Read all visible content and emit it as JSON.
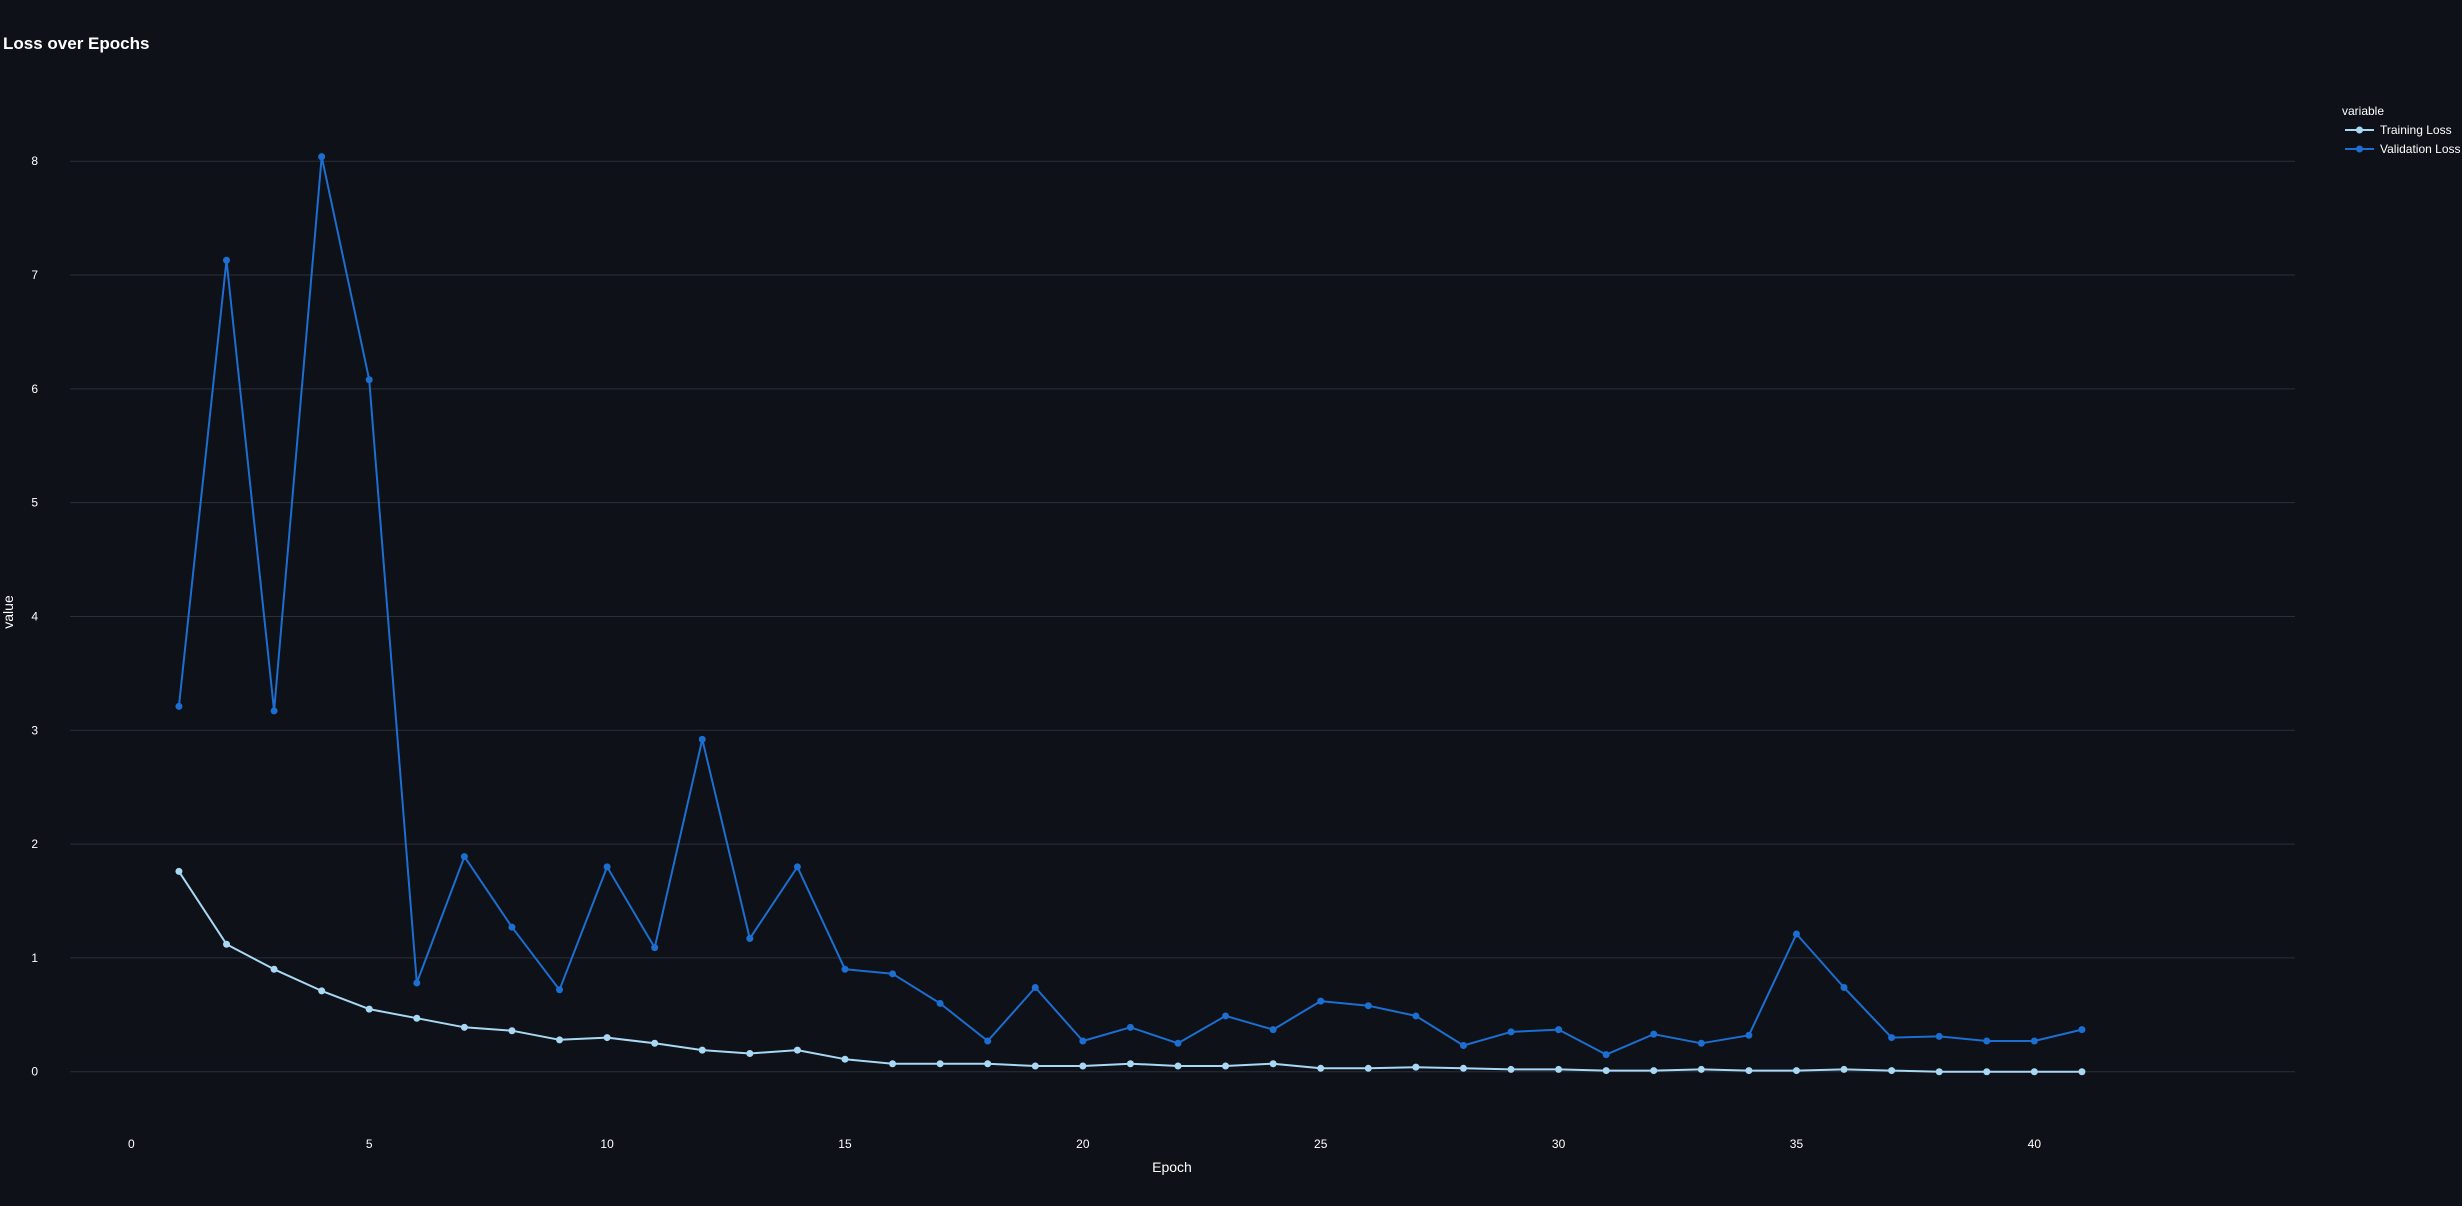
{
  "chart_data": {
    "type": "line",
    "title": "Loss over Epochs",
    "xlabel": "Epoch",
    "ylabel": "value",
    "xlim": [
      -1.5,
      45.5
    ],
    "ylim": [
      -0.6,
      8.45
    ],
    "xticks": [
      0,
      5,
      10,
      15,
      20,
      25,
      30,
      35,
      40
    ],
    "yticks": [
      0,
      1,
      2,
      3,
      4,
      5,
      6,
      7,
      8
    ],
    "grid": "horizontal",
    "legend": {
      "title": "variable",
      "placement": "top-right"
    },
    "x": [
      1,
      2,
      3,
      4,
      5,
      6,
      7,
      8,
      9,
      10,
      11,
      12,
      13,
      14,
      15,
      16,
      17,
      18,
      19,
      20,
      21,
      22,
      23,
      24,
      25,
      26,
      27,
      28,
      29,
      30,
      31,
      32,
      33,
      34,
      35,
      36,
      37,
      38,
      39,
      40,
      41
    ],
    "series": [
      {
        "name": "Training Loss",
        "color": "#a9d8f5",
        "values": [
          1.76,
          1.12,
          0.9,
          0.71,
          0.55,
          0.47,
          0.39,
          0.36,
          0.28,
          0.3,
          0.25,
          0.19,
          0.16,
          0.19,
          0.11,
          0.07,
          0.07,
          0.07,
          0.05,
          0.05,
          0.07,
          0.05,
          0.05,
          0.07,
          0.03,
          0.03,
          0.04,
          0.03,
          0.02,
          0.02,
          0.01,
          0.01,
          0.02,
          0.01,
          0.01,
          0.02,
          0.01,
          0.0,
          0.0,
          0.0,
          0.0
        ]
      },
      {
        "name": "Validation Loss",
        "color": "#1c6ed0",
        "values": [
          3.21,
          7.13,
          3.17,
          8.04,
          6.08,
          0.78,
          1.89,
          1.27,
          0.72,
          1.8,
          1.09,
          2.92,
          1.17,
          1.8,
          0.9,
          0.86,
          0.6,
          0.27,
          0.74,
          0.27,
          0.39,
          0.25,
          0.49,
          0.37,
          0.62,
          0.58,
          0.49,
          0.23,
          0.35,
          0.37,
          0.15,
          0.33,
          0.25,
          0.32,
          1.21,
          0.74,
          0.3,
          0.31,
          0.27,
          0.27,
          0.37
        ]
      }
    ]
  }
}
